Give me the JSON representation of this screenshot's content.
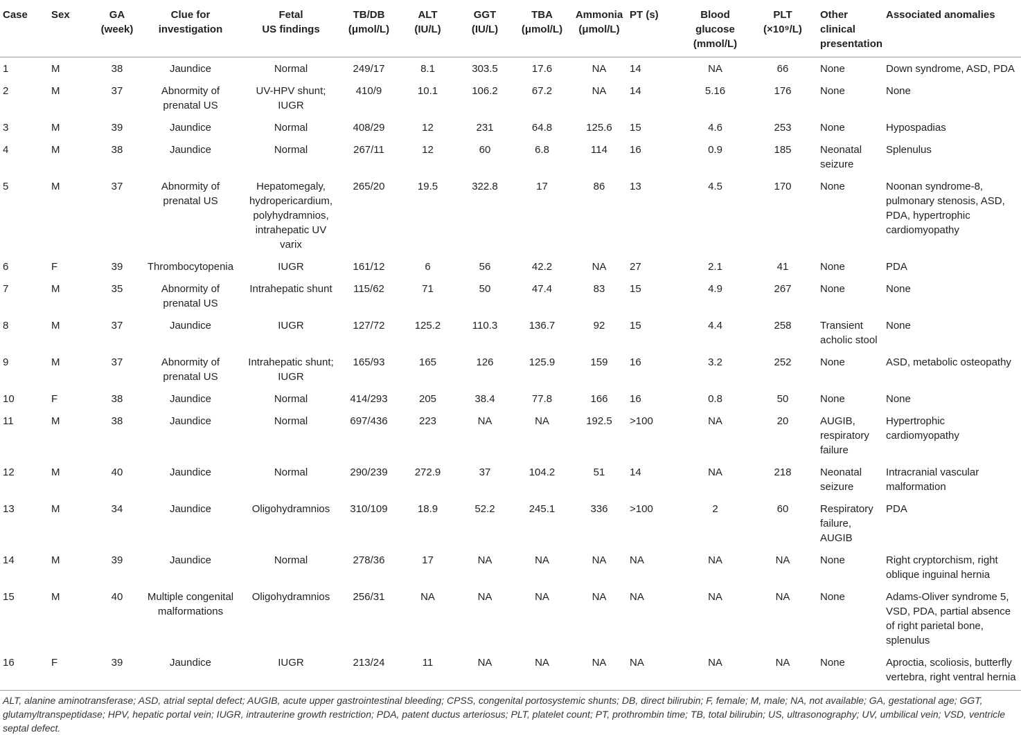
{
  "table": {
    "headers": [
      [
        "Case"
      ],
      [
        "Sex"
      ],
      [
        "GA",
        "(week)"
      ],
      [
        "Clue for",
        "investigation"
      ],
      [
        "Fetal",
        "US findings"
      ],
      [
        "TB/DB",
        "(μmol/L)"
      ],
      [
        "ALT",
        "(IU/L)"
      ],
      [
        "GGT",
        "(IU/L)"
      ],
      [
        "TBA",
        "(μmol/L)"
      ],
      [
        "Ammonia",
        "(μmol/L)"
      ],
      [
        "PT (s)"
      ],
      [
        "Blood",
        "glucose",
        "(mmol/L)"
      ],
      [
        "PLT",
        "(×10⁹/L)"
      ],
      [
        "Other",
        "clinical",
        "presentation"
      ],
      [
        "Associated anomalies"
      ]
    ],
    "rows": [
      [
        "1",
        "M",
        "38",
        "Jaundice",
        "Normal",
        "249/17",
        "8.1",
        "303.5",
        "17.6",
        "NA",
        "14",
        "NA",
        "66",
        "None",
        "Down syndrome, ASD, PDA"
      ],
      [
        "2",
        "M",
        "37",
        "Abnormity of prenatal US",
        "UV-HPV shunt; IUGR",
        "410/9",
        "10.1",
        "106.2",
        "67.2",
        "NA",
        "14",
        "5.16",
        "176",
        "None",
        "None"
      ],
      [
        "3",
        "M",
        "39",
        "Jaundice",
        "Normal",
        "408/29",
        "12",
        "231",
        "64.8",
        "125.6",
        "15",
        "4.6",
        "253",
        "None",
        "Hypospadias"
      ],
      [
        "4",
        "M",
        "38",
        "Jaundice",
        "Normal",
        "267/11",
        "12",
        "60",
        "6.8",
        "114",
        "16",
        "0.9",
        "185",
        "Neonatal seizure",
        "Splenulus"
      ],
      [
        "5",
        "M",
        "37",
        "Abnormity of prenatal US",
        "Hepatomegaly, hydropericardium, polyhydramnios, intrahepatic UV varix",
        "265/20",
        "19.5",
        "322.8",
        "17",
        "86",
        "13",
        "4.5",
        "170",
        "None",
        "Noonan syndrome-8, pulmonary stenosis, ASD, PDA, hypertrophic cardiomyopathy"
      ],
      [
        "6",
        "F",
        "39",
        "Thrombocytopenia",
        "IUGR",
        "161/12",
        "6",
        "56",
        "42.2",
        "NA",
        "27",
        "2.1",
        "41",
        "None",
        "PDA"
      ],
      [
        "7",
        "M",
        "35",
        "Abnormity of prenatal US",
        "Intrahepatic shunt",
        "115/62",
        "71",
        "50",
        "47.4",
        "83",
        "15",
        "4.9",
        "267",
        "None",
        "None"
      ],
      [
        "8",
        "M",
        "37",
        "Jaundice",
        "IUGR",
        "127/72",
        "125.2",
        "110.3",
        "136.7",
        "92",
        "15",
        "4.4",
        "258",
        "Transient acholic stool",
        "None"
      ],
      [
        "9",
        "M",
        "37",
        "Abnormity of prenatal US",
        "Intrahepatic shunt; IUGR",
        "165/93",
        "165",
        "126",
        "125.9",
        "159",
        "16",
        "3.2",
        "252",
        "None",
        "ASD, metabolic osteopathy"
      ],
      [
        "10",
        "F",
        "38",
        "Jaundice",
        "Normal",
        "414/293",
        "205",
        "38.4",
        "77.8",
        "166",
        "16",
        "0.8",
        "50",
        "None",
        "None"
      ],
      [
        "11",
        "M",
        "38",
        "Jaundice",
        "Normal",
        "697/436",
        "223",
        "NA",
        "NA",
        "192.5",
        ">100",
        "NA",
        "20",
        "AUGIB, respiratory failure",
        "Hypertrophic cardiomyopathy"
      ],
      [
        "12",
        "M",
        "40",
        "Jaundice",
        "Normal",
        "290/239",
        "272.9",
        "37",
        "104.2",
        "51",
        "14",
        "NA",
        "218",
        "Neonatal seizure",
        "Intracranial vascular malformation"
      ],
      [
        "13",
        "M",
        "34",
        "Jaundice",
        "Oligohydramnios",
        "310/109",
        "18.9",
        "52.2",
        "245.1",
        "336",
        ">100",
        "2",
        "60",
        "Respiratory failure, AUGIB",
        "PDA"
      ],
      [
        "14",
        "M",
        "39",
        "Jaundice",
        "Normal",
        "278/36",
        "17",
        "NA",
        "NA",
        "NA",
        "NA",
        "NA",
        "NA",
        "None",
        "Right cryptorchism, right oblique inguinal hernia"
      ],
      [
        "15",
        "M",
        "40",
        "Multiple congenital malformations",
        "Oligohydramnios",
        "256/31",
        "NA",
        "NA",
        "NA",
        "NA",
        "NA",
        "NA",
        "NA",
        "None",
        "Adams-Oliver syndrome 5, VSD, PDA, partial absence of right parietal bone, splenulus"
      ],
      [
        "16",
        "F",
        "39",
        "Jaundice",
        "IUGR",
        "213/24",
        "11",
        "NA",
        "NA",
        "NA",
        "NA",
        "NA",
        "NA",
        "None",
        "Aproctia, scoliosis, butterfly vertebra, right ventral hernia"
      ]
    ]
  },
  "footnote": "ALT, alanine aminotransferase; ASD, atrial septal defect; AUGIB, acute upper gastrointestinal bleeding; CPSS, congenital portosystemic shunts; DB, direct bilirubin; F, female; M, male; NA, not available; GA, gestational age; GGT, glutamyltranspeptidase; HPV, hepatic portal vein; IUGR, intrauterine growth restriction; PDA, patent ductus arteriosus; PLT, platelet count; PT, prothrombin time; TB, total bilirubin; US, ultrasonography; UV, umbilical vein; VSD, ventricle septal defect."
}
